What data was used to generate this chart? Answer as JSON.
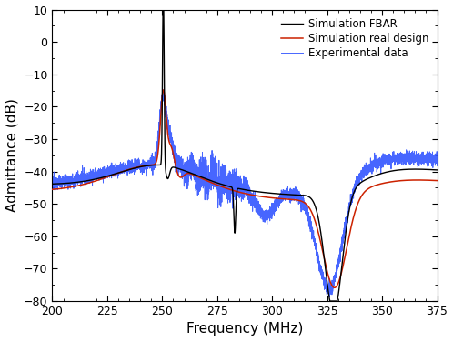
{
  "title": "",
  "xlabel": "Frequency (MHz)",
  "ylabel": "Admittance (dB)",
  "xlim": [
    200,
    375
  ],
  "ylim": [
    -80,
    10
  ],
  "xticks": [
    200,
    225,
    250,
    275,
    300,
    325,
    350,
    375
  ],
  "yticks": [
    -80,
    -70,
    -60,
    -50,
    -40,
    -30,
    -20,
    -10,
    0,
    10
  ],
  "legend_labels": [
    "Simulation FBAR",
    "Simulation real design",
    "Experimental data"
  ],
  "colors": {
    "sim_fbar": "#000000",
    "sim_real": "#cc2200",
    "experimental": "#3355ff"
  },
  "background_color": "#ffffff"
}
